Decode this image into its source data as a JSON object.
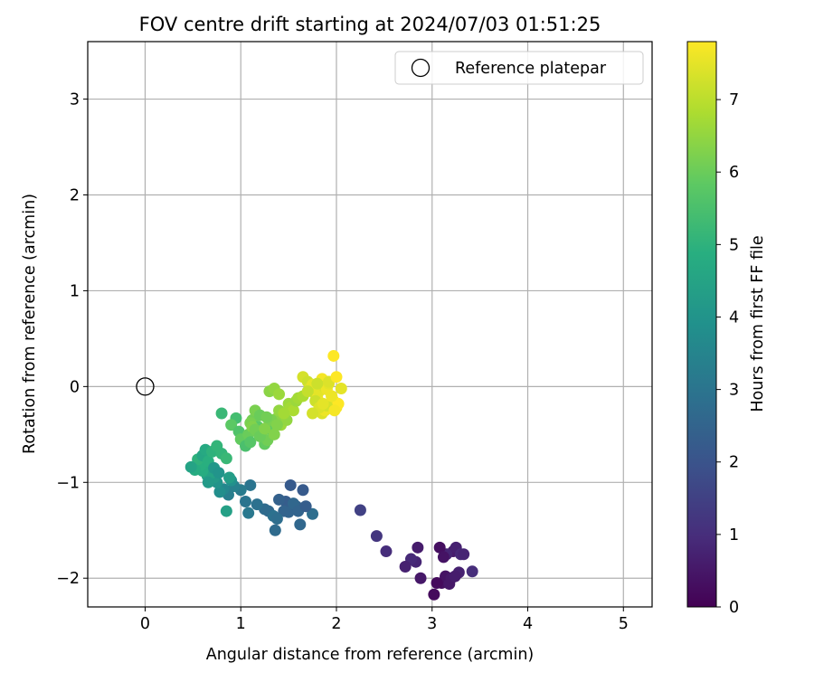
{
  "chart_data": {
    "type": "scatter",
    "title": "FOV centre drift starting at 2024/07/03 01:51:25",
    "xlabel": "Angular distance from reference (arcmin)",
    "ylabel": "Rotation from reference (arcmin)",
    "xlim": [
      -0.6,
      5.3
    ],
    "ylim": [
      -2.3,
      3.6
    ],
    "xticks": [
      0,
      1,
      2,
      3,
      4,
      5
    ],
    "yticks": [
      -2,
      -1,
      0,
      1,
      2,
      3
    ],
    "grid": true,
    "legend": {
      "placement": "top-right",
      "entries": [
        "Reference platepar"
      ]
    },
    "reference_point": {
      "name": "Reference platepar",
      "x": 0,
      "y": 0
    },
    "colorbar": {
      "label": "Hours from first FF file",
      "range": [
        0,
        7.8
      ],
      "ticks": [
        0,
        1,
        2,
        3,
        4,
        5,
        6,
        7
      ],
      "colormap": "viridis"
    },
    "series": [
      {
        "x": [
          3.02,
          3.1,
          3.14,
          3.18,
          3.22,
          3.25,
          3.15,
          3.3,
          3.42,
          3.08,
          3.2,
          3.28,
          3.12,
          3.24,
          3.33,
          3.05,
          2.85,
          2.83,
          2.78,
          2.72,
          2.88,
          2.52,
          2.42,
          2.25,
          1.62,
          1.5,
          1.58,
          1.47,
          1.65,
          1.4,
          1.55,
          1.6,
          1.75,
          1.68,
          1.45,
          1.52,
          1.36,
          1.29,
          1.34,
          1.38,
          1.25,
          1.17,
          1.1,
          1.08,
          1.05,
          1.0,
          0.93,
          0.87,
          0.85,
          0.82,
          0.9,
          0.78,
          0.75,
          0.72,
          0.7,
          0.68,
          0.65,
          0.62,
          0.6,
          0.58,
          0.55,
          0.52,
          0.48,
          0.6,
          0.63,
          0.66,
          0.7,
          0.75,
          0.8,
          0.85,
          0.88,
          0.72,
          0.77,
          0.66,
          0.8,
          0.95,
          0.9,
          0.98,
          1.0,
          1.05,
          1.08,
          1.1,
          1.12,
          1.15,
          1.18,
          1.2,
          1.22,
          1.25,
          1.28,
          1.3,
          1.32,
          1.35,
          1.38,
          1.4,
          1.42,
          1.45,
          1.48,
          1.5,
          1.52,
          1.55,
          1.58,
          1.1,
          1.12,
          1.15,
          1.2,
          1.25,
          1.3,
          1.35,
          1.4,
          1.45,
          1.6,
          1.65,
          1.32,
          1.38,
          1.27,
          1.65,
          1.7,
          1.72,
          1.75,
          1.78,
          1.8,
          1.82,
          1.85,
          1.87,
          1.9,
          1.92,
          1.95,
          1.97,
          2.0,
          2.02,
          2.05,
          1.85,
          1.88,
          1.9,
          1.78,
          1.82,
          1.86,
          1.95,
          1.98,
          1.75,
          1.8,
          1.92,
          2.0,
          1.7,
          1.97
        ],
        "y": [
          -2.17,
          -2.05,
          -1.98,
          -2.06,
          -1.72,
          -1.68,
          -1.75,
          -1.75,
          -1.93,
          -1.68,
          -2.0,
          -1.94,
          -1.78,
          -1.98,
          -1.75,
          -2.05,
          -1.68,
          -1.83,
          -1.8,
          -1.88,
          -2.0,
          -1.72,
          -1.56,
          -1.29,
          -1.44,
          -1.31,
          -1.25,
          -1.2,
          -1.08,
          -1.18,
          -1.22,
          -1.3,
          -1.33,
          -1.25,
          -1.3,
          -1.03,
          -1.5,
          -1.3,
          -1.35,
          -1.38,
          -1.28,
          -1.23,
          -1.03,
          -1.32,
          -1.2,
          -1.08,
          -1.04,
          -1.13,
          -1.3,
          -1.07,
          -0.98,
          -1.1,
          -1.0,
          -0.95,
          -0.9,
          -0.85,
          -0.93,
          -0.8,
          -0.88,
          -0.82,
          -0.76,
          -0.87,
          -0.84,
          -0.72,
          -0.66,
          -0.78,
          -0.68,
          -0.62,
          -0.7,
          -0.75,
          -0.95,
          -0.85,
          -0.9,
          -1.0,
          -0.28,
          -0.33,
          -0.4,
          -0.47,
          -0.55,
          -0.62,
          -0.5,
          -0.58,
          -0.35,
          -0.25,
          -0.42,
          -0.3,
          -0.48,
          -0.6,
          -0.56,
          -0.38,
          -0.45,
          -0.5,
          -0.33,
          -0.25,
          -0.4,
          -0.3,
          -0.35,
          -0.18,
          -0.22,
          -0.25,
          -0.15,
          -0.38,
          -0.42,
          -0.45,
          -0.52,
          -0.44,
          -0.05,
          -0.02,
          -0.08,
          -0.28,
          -0.12,
          -0.1,
          -0.35,
          -0.4,
          -0.32,
          0.1,
          0.05,
          -0.02,
          0.02,
          -0.08,
          -0.12,
          -0.05,
          0.08,
          0.0,
          -0.03,
          0.03,
          -0.1,
          -0.15,
          -0.22,
          -0.18,
          -0.02,
          -0.28,
          -0.25,
          -0.2,
          -0.15,
          -0.22,
          -0.18,
          -0.1,
          -0.25,
          -0.28,
          0.03,
          0.05,
          0.1,
          -0.05,
          0.32
        ],
        "hours": [
          0.2,
          0.3,
          0.4,
          0.5,
          0.6,
          0.7,
          0.8,
          0.9,
          1.0,
          0.3,
          0.5,
          0.7,
          0.4,
          0.6,
          0.8,
          0.2,
          0.6,
          0.8,
          0.9,
          0.7,
          0.5,
          1.0,
          1.2,
          1.5,
          2.6,
          2.5,
          2.4,
          2.3,
          2.2,
          2.4,
          2.6,
          2.5,
          2.8,
          2.3,
          2.5,
          2.2,
          2.7,
          2.6,
          2.9,
          2.8,
          2.7,
          2.9,
          3.0,
          3.1,
          3.0,
          3.2,
          3.4,
          3.3,
          4.4,
          3.6,
          3.9,
          3.8,
          4.0,
          4.2,
          4.4,
          4.6,
          4.5,
          4.7,
          4.8,
          4.9,
          5.0,
          4.8,
          4.5,
          4.6,
          4.7,
          4.9,
          5.0,
          5.1,
          5.1,
          5.2,
          4.3,
          4.1,
          4.0,
          4.2,
          5.2,
          5.4,
          5.8,
          5.6,
          5.9,
          5.5,
          6.0,
          5.7,
          6.1,
          6.2,
          5.8,
          6.0,
          6.3,
          5.9,
          6.1,
          6.2,
          5.9,
          6.3,
          6.4,
          6.5,
          6.6,
          6.4,
          6.5,
          6.6,
          6.7,
          6.8,
          6.6,
          6.2,
          6.3,
          6.1,
          6.0,
          6.3,
          6.4,
          6.5,
          6.6,
          6.7,
          6.7,
          6.8,
          6.2,
          6.3,
          6.1,
          7.3,
          7.2,
          7.4,
          7.5,
          7.3,
          7.6,
          7.5,
          7.7,
          7.4,
          7.6,
          7.5,
          7.7,
          7.6,
          7.7,
          7.8,
          7.5,
          7.4,
          7.6,
          7.3,
          7.2,
          7.4,
          7.5,
          7.6,
          7.7,
          7.3,
          7.2,
          7.4,
          7.8,
          7.1,
          7.8
        ]
      }
    ]
  }
}
